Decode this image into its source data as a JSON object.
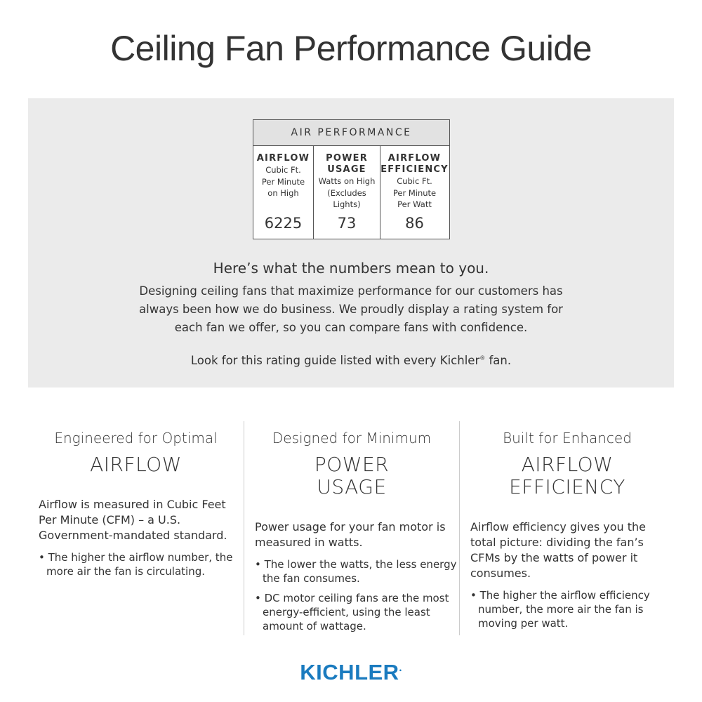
{
  "title": "Ceiling Fan Performance Guide",
  "table": {
    "header": "AIR PERFORMANCE",
    "columns": [
      {
        "heading": "AIRFLOW",
        "lines": [
          "Cubic Ft.",
          "Per Minute",
          "on High"
        ],
        "value": "6225"
      },
      {
        "heading": "POWER USAGE",
        "lines": [
          "Watts on High",
          "(Excludes",
          "Lights)"
        ],
        "value": "73"
      },
      {
        "heading": "AIRFLOW EFFICIENCY",
        "lines": [
          "Cubic Ft.",
          "Per Minute",
          "Per Watt"
        ],
        "value": "86"
      }
    ]
  },
  "intro": {
    "heading": "Here’s what the numbers mean to you.",
    "text": "Designing ceiling fans that maximize performance for our customers has always been how we do business. We proudly display a rating system for each fan we offer, so you can compare fans with confidence.",
    "look": "Look for this rating guide listed with every Kichler",
    "reg": "®",
    "look_end": " fan."
  },
  "features": [
    {
      "lead": "Engineered for Optimal",
      "big": "AIRFLOW",
      "body": "Airflow is measured in Cubic Feet Per Minute (CFM) – a U.S. Government-mandated standard.",
      "bullets": [
        "The higher the airflow number, the more air the fan is circulating."
      ]
    },
    {
      "lead": "Designed for Minimum",
      "big": "POWER USAGE",
      "body": "Power usage for your fan motor is measured in watts.",
      "bullets": [
        "The lower the watts, the less energy the fan consumes.",
        "DC motor ceiling fans are the most energy-efficient, using the least amount of wattage."
      ]
    },
    {
      "lead": "Built for Enhanced",
      "big": "AIRFLOW EFFICIENCY",
      "body": "Airflow efficiency gives you the total picture: dividing the fan’s CFMs by the watts of power it consumes.",
      "bullets": [
        "The higher the airflow efficiency number, the more air the fan is moving per watt."
      ]
    }
  ],
  "logo": {
    "text": "KICHLER",
    "color": "#1a7bbf"
  }
}
